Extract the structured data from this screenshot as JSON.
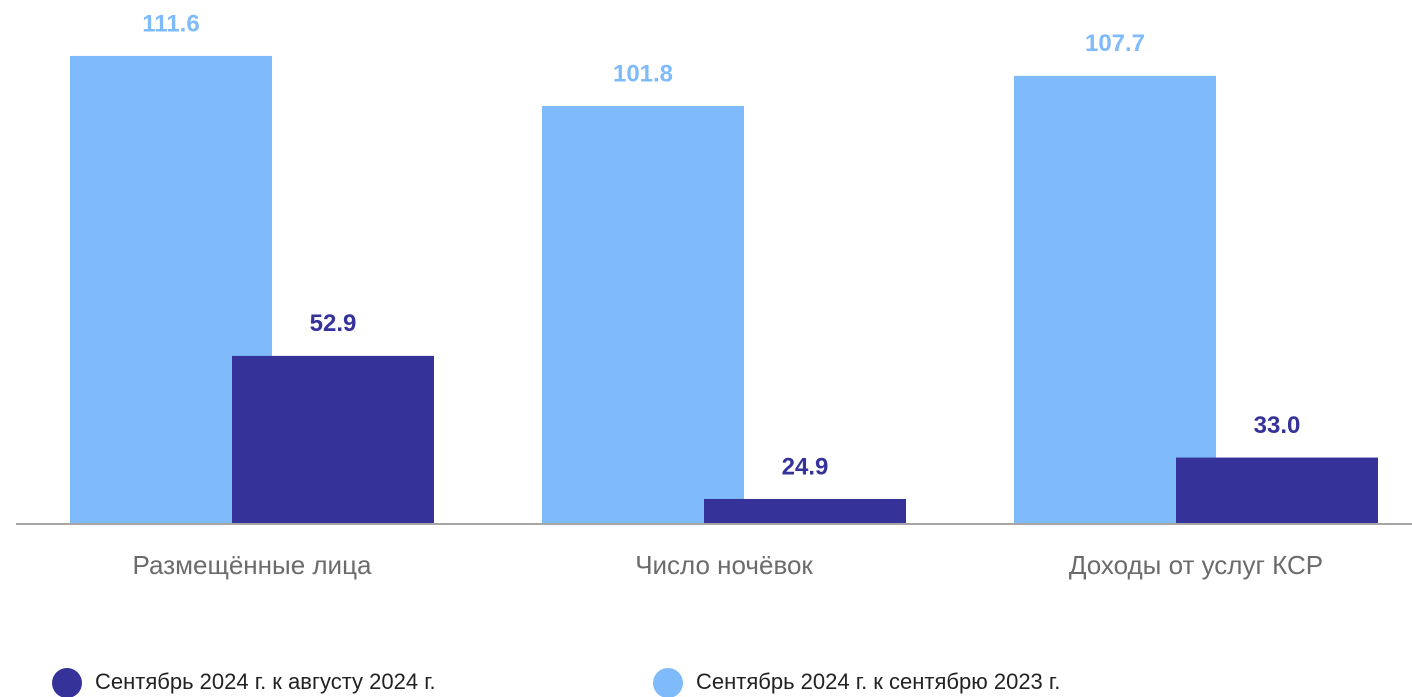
{
  "chart_data": {
    "type": "bar",
    "categories": [
      "Размещённые лица",
      "Число ночёвок",
      "Доходы от услуг КСР"
    ],
    "series": [
      {
        "name": "Сентябрь 2024 г. к августу 2024 г.",
        "color": "#35329a",
        "values": [
          52.9,
          24.9,
          33.0
        ],
        "value_labels": [
          "52.9",
          "24.9",
          "33.0"
        ]
      },
      {
        "name": "Сентябрь 2024 г. к сентябрю 2023 г.",
        "color": "#7fbbfb",
        "values": [
          111.6,
          101.8,
          107.7
        ],
        "value_labels": [
          "111.6",
          "101.8",
          "107.7"
        ]
      }
    ],
    "ylim": [
      20,
      120
    ]
  }
}
